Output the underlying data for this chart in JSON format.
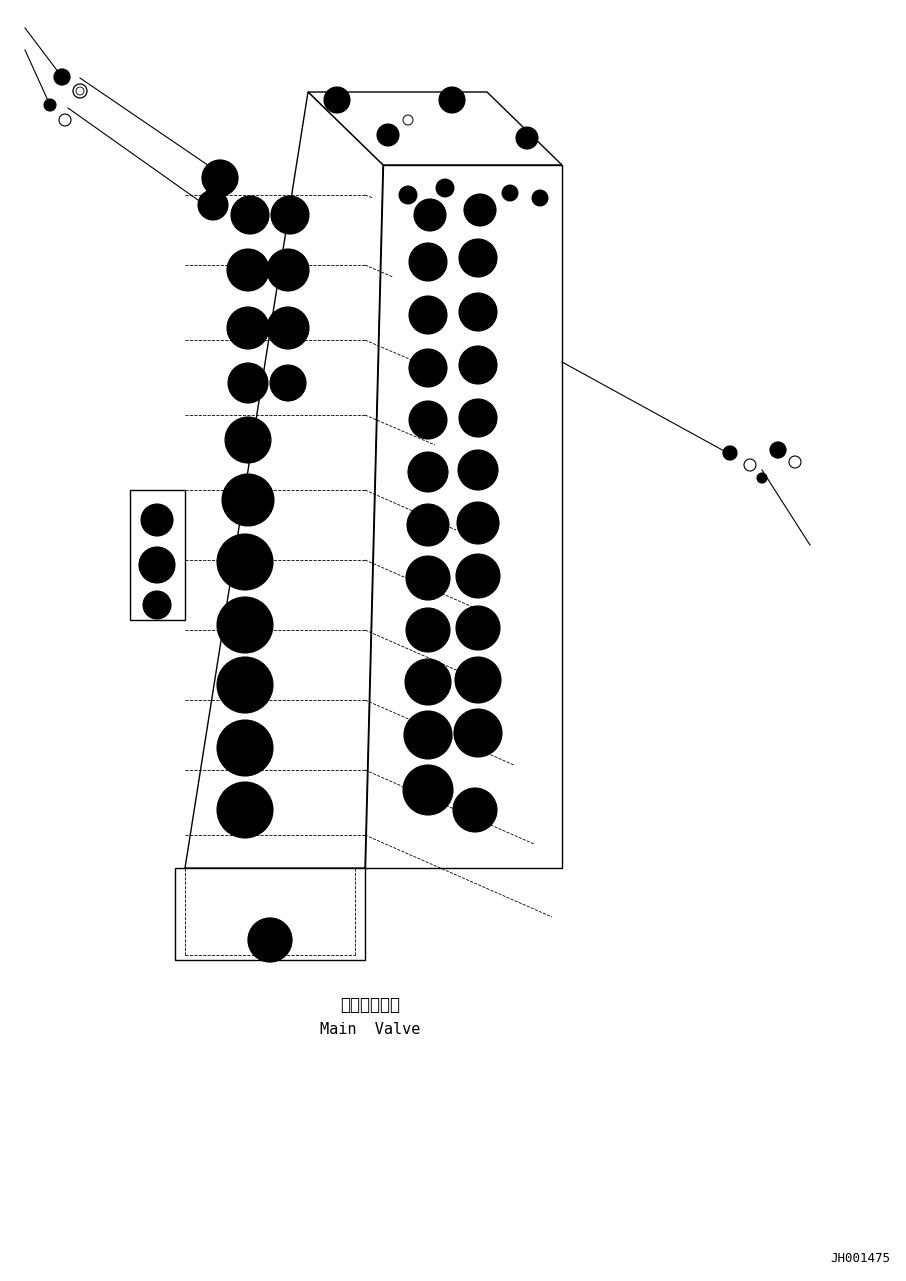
{
  "background_color": "#ffffff",
  "line_color": "#000000",
  "label_japanese": "メインバルブ",
  "label_english": "Main  Valve",
  "part_number": "JH001475",
  "fig_width": 9.06,
  "fig_height": 12.81
}
